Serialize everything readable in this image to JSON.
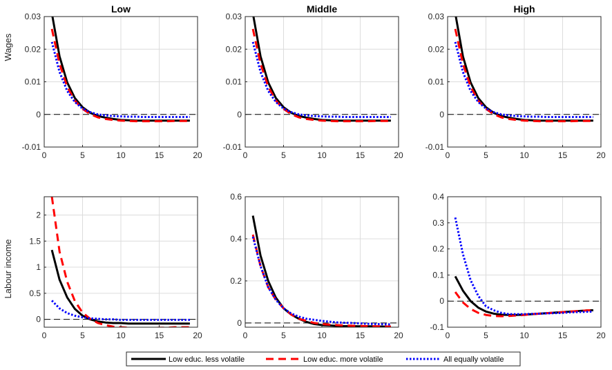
{
  "chart_data": {
    "type": "line",
    "xlim": [
      0,
      20
    ],
    "xticks": [
      0,
      5,
      10,
      15,
      20
    ],
    "grid": true,
    "legend_placement": "bottom-center",
    "series_styles": [
      {
        "name": "Low educ. less volatile",
        "color": "#000000",
        "dash": "solid"
      },
      {
        "name": "Low educ. more volatile",
        "color": "#ff0000",
        "dash": "dashed"
      },
      {
        "name": "All equally volatile",
        "color": "#0000ff",
        "dash": "dotted"
      }
    ],
    "legend": [
      "Low educ. less volatile",
      "Low educ. more volatile",
      "All equally volatile"
    ],
    "row_labels": [
      "Wages",
      "Labour income"
    ],
    "panels": [
      {
        "title": "Low",
        "row": 0,
        "col": 0,
        "ylabel": "Wages",
        "ylim": [
          -0.01,
          0.03
        ],
        "yticks": [
          "-0.01",
          "0",
          "0.01",
          "0.02",
          "0.03"
        ],
        "ytick_values": [
          -0.01,
          0,
          0.01,
          0.02,
          0.03
        ],
        "x": [
          1,
          2,
          3,
          4,
          5,
          6,
          7,
          8,
          9,
          10,
          11,
          12,
          13,
          14,
          15,
          16,
          17,
          18,
          19
        ],
        "series": [
          {
            "name": "Low educ. less volatile",
            "values": [
              0.031,
              0.0178,
              0.0098,
              0.005,
              0.0022,
              0.0005,
              -0.0005,
              -0.001,
              -0.0014,
              -0.0017,
              -0.0018,
              -0.0019,
              -0.0019,
              -0.0019,
              -0.0019,
              -0.0019,
              -0.0019,
              -0.0019,
              -0.0019
            ]
          },
          {
            "name": "Low educ. more volatile",
            "values": [
              0.0262,
              0.0155,
              0.0085,
              0.0042,
              0.0017,
              0.0001,
              -0.0009,
              -0.0014,
              -0.0017,
              -0.0019,
              -0.002,
              -0.0021,
              -0.0021,
              -0.0021,
              -0.0021,
              -0.0021,
              -0.002,
              -0.002,
              -0.002
            ]
          },
          {
            "name": "All equally volatile",
            "values": [
              0.0222,
              0.013,
              0.0072,
              0.0038,
              0.0018,
              0.0007,
              0.0,
              -0.0003,
              -0.0005,
              -0.0006,
              -0.0007,
              -0.0007,
              -0.0008,
              -0.0008,
              -0.0008,
              -0.0008,
              -0.0008,
              -0.0008,
              -0.0008
            ]
          }
        ]
      },
      {
        "title": "Middle",
        "row": 0,
        "col": 1,
        "ylabel": "",
        "ylim": [
          -0.01,
          0.03
        ],
        "yticks": [
          "-0.01",
          "0",
          "0.01",
          "0.02",
          "0.03"
        ],
        "ytick_values": [
          -0.01,
          0,
          0.01,
          0.02,
          0.03
        ],
        "x": [
          1,
          2,
          3,
          4,
          5,
          6,
          7,
          8,
          9,
          10,
          11,
          12,
          13,
          14,
          15,
          16,
          17,
          18,
          19
        ],
        "series": [
          {
            "name": "Low educ. less volatile",
            "values": [
              0.031,
              0.0178,
              0.0098,
              0.005,
              0.0022,
              0.0005,
              -0.0005,
              -0.001,
              -0.0014,
              -0.0017,
              -0.0018,
              -0.0019,
              -0.0019,
              -0.0019,
              -0.0019,
              -0.0019,
              -0.0019,
              -0.0019,
              -0.0019
            ]
          },
          {
            "name": "Low educ. more volatile",
            "values": [
              0.0262,
              0.0155,
              0.0085,
              0.0042,
              0.0017,
              0.0001,
              -0.0009,
              -0.0014,
              -0.0017,
              -0.0019,
              -0.002,
              -0.0021,
              -0.0021,
              -0.0021,
              -0.0021,
              -0.0021,
              -0.002,
              -0.002,
              -0.002
            ]
          },
          {
            "name": "All equally volatile",
            "values": [
              0.0222,
              0.013,
              0.0072,
              0.0038,
              0.0018,
              0.0007,
              0.0,
              -0.0003,
              -0.0005,
              -0.0006,
              -0.0007,
              -0.0007,
              -0.0008,
              -0.0008,
              -0.0008,
              -0.0008,
              -0.0008,
              -0.0008,
              -0.0008
            ]
          }
        ]
      },
      {
        "title": "High",
        "row": 0,
        "col": 2,
        "ylabel": "",
        "ylim": [
          -0.01,
          0.03
        ],
        "yticks": [
          "-0.01",
          "0",
          "0.01",
          "0.02",
          "0.03"
        ],
        "ytick_values": [
          -0.01,
          0,
          0.01,
          0.02,
          0.03
        ],
        "x": [
          1,
          2,
          3,
          4,
          5,
          6,
          7,
          8,
          9,
          10,
          11,
          12,
          13,
          14,
          15,
          16,
          17,
          18,
          19
        ],
        "series": [
          {
            "name": "Low educ. less volatile",
            "values": [
              0.031,
              0.0178,
              0.0098,
              0.005,
              0.0022,
              0.0005,
              -0.0005,
              -0.001,
              -0.0014,
              -0.0017,
              -0.0018,
              -0.0019,
              -0.0019,
              -0.0019,
              -0.0019,
              -0.0019,
              -0.0019,
              -0.0019,
              -0.0019
            ]
          },
          {
            "name": "Low educ. more volatile",
            "values": [
              0.0262,
              0.0155,
              0.0085,
              0.0042,
              0.0017,
              0.0001,
              -0.0009,
              -0.0014,
              -0.0017,
              -0.0019,
              -0.002,
              -0.0021,
              -0.0021,
              -0.0021,
              -0.0021,
              -0.0021,
              -0.002,
              -0.002,
              -0.002
            ]
          },
          {
            "name": "All equally volatile",
            "values": [
              0.0222,
              0.013,
              0.0072,
              0.0038,
              0.0018,
              0.0007,
              0.0,
              -0.0003,
              -0.0005,
              -0.0006,
              -0.0007,
              -0.0007,
              -0.0008,
              -0.0008,
              -0.0008,
              -0.0008,
              -0.0008,
              -0.0008,
              -0.0008
            ]
          }
        ]
      },
      {
        "title": "",
        "row": 1,
        "col": 0,
        "ylabel": "Labour income",
        "ylim": [
          -0.15,
          2.35
        ],
        "yticks": [
          "0",
          "0.5",
          "1",
          "1.5",
          "2"
        ],
        "ytick_values": [
          0,
          0.5,
          1,
          1.5,
          2
        ],
        "x": [
          1,
          2,
          3,
          4,
          5,
          6,
          7,
          8,
          9,
          10,
          11,
          12,
          13,
          14,
          15,
          16,
          17,
          18,
          19
        ],
        "series": [
          {
            "name": "Low educ. less volatile",
            "values": [
              1.33,
              0.76,
              0.42,
              0.2,
              0.07,
              0.0,
              -0.04,
              -0.06,
              -0.07,
              -0.07,
              -0.08,
              -0.08,
              -0.08,
              -0.08,
              -0.08,
              -0.08,
              -0.08,
              -0.08,
              -0.08
            ]
          },
          {
            "name": "Low educ. more volatile",
            "values": [
              2.35,
              1.3,
              0.72,
              0.35,
              0.13,
              0.01,
              -0.07,
              -0.11,
              -0.14,
              -0.15,
              -0.16,
              -0.17,
              -0.17,
              -0.17,
              -0.16,
              -0.16,
              -0.15,
              -0.15,
              -0.15
            ]
          },
          {
            "name": "All equally volatile",
            "values": [
              0.36,
              0.21,
              0.12,
              0.07,
              0.04,
              0.02,
              0.01,
              0.0,
              0.0,
              -0.01,
              -0.01,
              -0.01,
              -0.01,
              -0.01,
              -0.01,
              -0.01,
              -0.01,
              -0.01,
              -0.01
            ]
          }
        ]
      },
      {
        "title": "",
        "row": 1,
        "col": 1,
        "ylabel": "",
        "ylim": [
          -0.02,
          0.6
        ],
        "yticks": [
          "0",
          "0.2",
          "0.4",
          "0.6"
        ],
        "ytick_values": [
          0,
          0.2,
          0.4,
          0.6
        ],
        "x": [
          1,
          2,
          3,
          4,
          5,
          6,
          7,
          8,
          9,
          10,
          11,
          12,
          13,
          14,
          15,
          16,
          17,
          18,
          19
        ],
        "series": [
          {
            "name": "Low educ. less volatile",
            "values": [
              0.51,
              0.32,
              0.2,
              0.12,
              0.07,
              0.04,
              0.02,
              0.005,
              -0.005,
              -0.01,
              -0.012,
              -0.014,
              -0.015,
              -0.015,
              -0.016,
              -0.016,
              -0.016,
              -0.017,
              -0.017
            ]
          },
          {
            "name": "Low educ. more volatile",
            "values": [
              0.42,
              0.27,
              0.17,
              0.11,
              0.07,
              0.04,
              0.02,
              0.01,
              0.0,
              -0.005,
              -0.008,
              -0.01,
              -0.012,
              -0.013,
              -0.014,
              -0.015,
              -0.016,
              -0.016,
              -0.017
            ]
          },
          {
            "name": "All equally volatile",
            "values": [
              0.41,
              0.27,
              0.17,
              0.11,
              0.07,
              0.045,
              0.03,
              0.02,
              0.015,
              0.01,
              0.006,
              0.003,
              0.001,
              0.0,
              -0.002,
              -0.004,
              -0.005,
              -0.006,
              -0.007
            ]
          }
        ]
      },
      {
        "title": "",
        "row": 1,
        "col": 2,
        "ylabel": "",
        "ylim": [
          -0.1,
          0.4
        ],
        "yticks": [
          "-0.1",
          "0",
          "0.1",
          "0.2",
          "0.3",
          "0.4"
        ],
        "ytick_values": [
          -0.1,
          0,
          0.1,
          0.2,
          0.3,
          0.4
        ],
        "x": [
          1,
          2,
          3,
          4,
          5,
          6,
          7,
          8,
          9,
          10,
          11,
          12,
          13,
          14,
          15,
          16,
          17,
          18,
          19
        ],
        "series": [
          {
            "name": "Low educ. less volatile",
            "values": [
              0.095,
              0.04,
              0.0,
              -0.025,
              -0.04,
              -0.048,
              -0.052,
              -0.053,
              -0.053,
              -0.052,
              -0.05,
              -0.048,
              -0.046,
              -0.044,
              -0.042,
              -0.04,
              -0.038,
              -0.036,
              -0.035
            ]
          },
          {
            "name": "Low educ. more volatile",
            "values": [
              0.035,
              -0.005,
              -0.03,
              -0.045,
              -0.053,
              -0.057,
              -0.058,
              -0.057,
              -0.055,
              -0.053,
              -0.05,
              -0.048,
              -0.046,
              -0.044,
              -0.042,
              -0.04,
              -0.038,
              -0.036,
              -0.034
            ]
          },
          {
            "name": "All equally volatile",
            "values": [
              0.32,
              0.18,
              0.08,
              0.02,
              -0.02,
              -0.035,
              -0.045,
              -0.05,
              -0.05,
              -0.05,
              -0.049,
              -0.048,
              -0.047,
              -0.046,
              -0.045,
              -0.043,
              -0.042,
              -0.041,
              -0.04
            ]
          }
        ]
      }
    ]
  }
}
